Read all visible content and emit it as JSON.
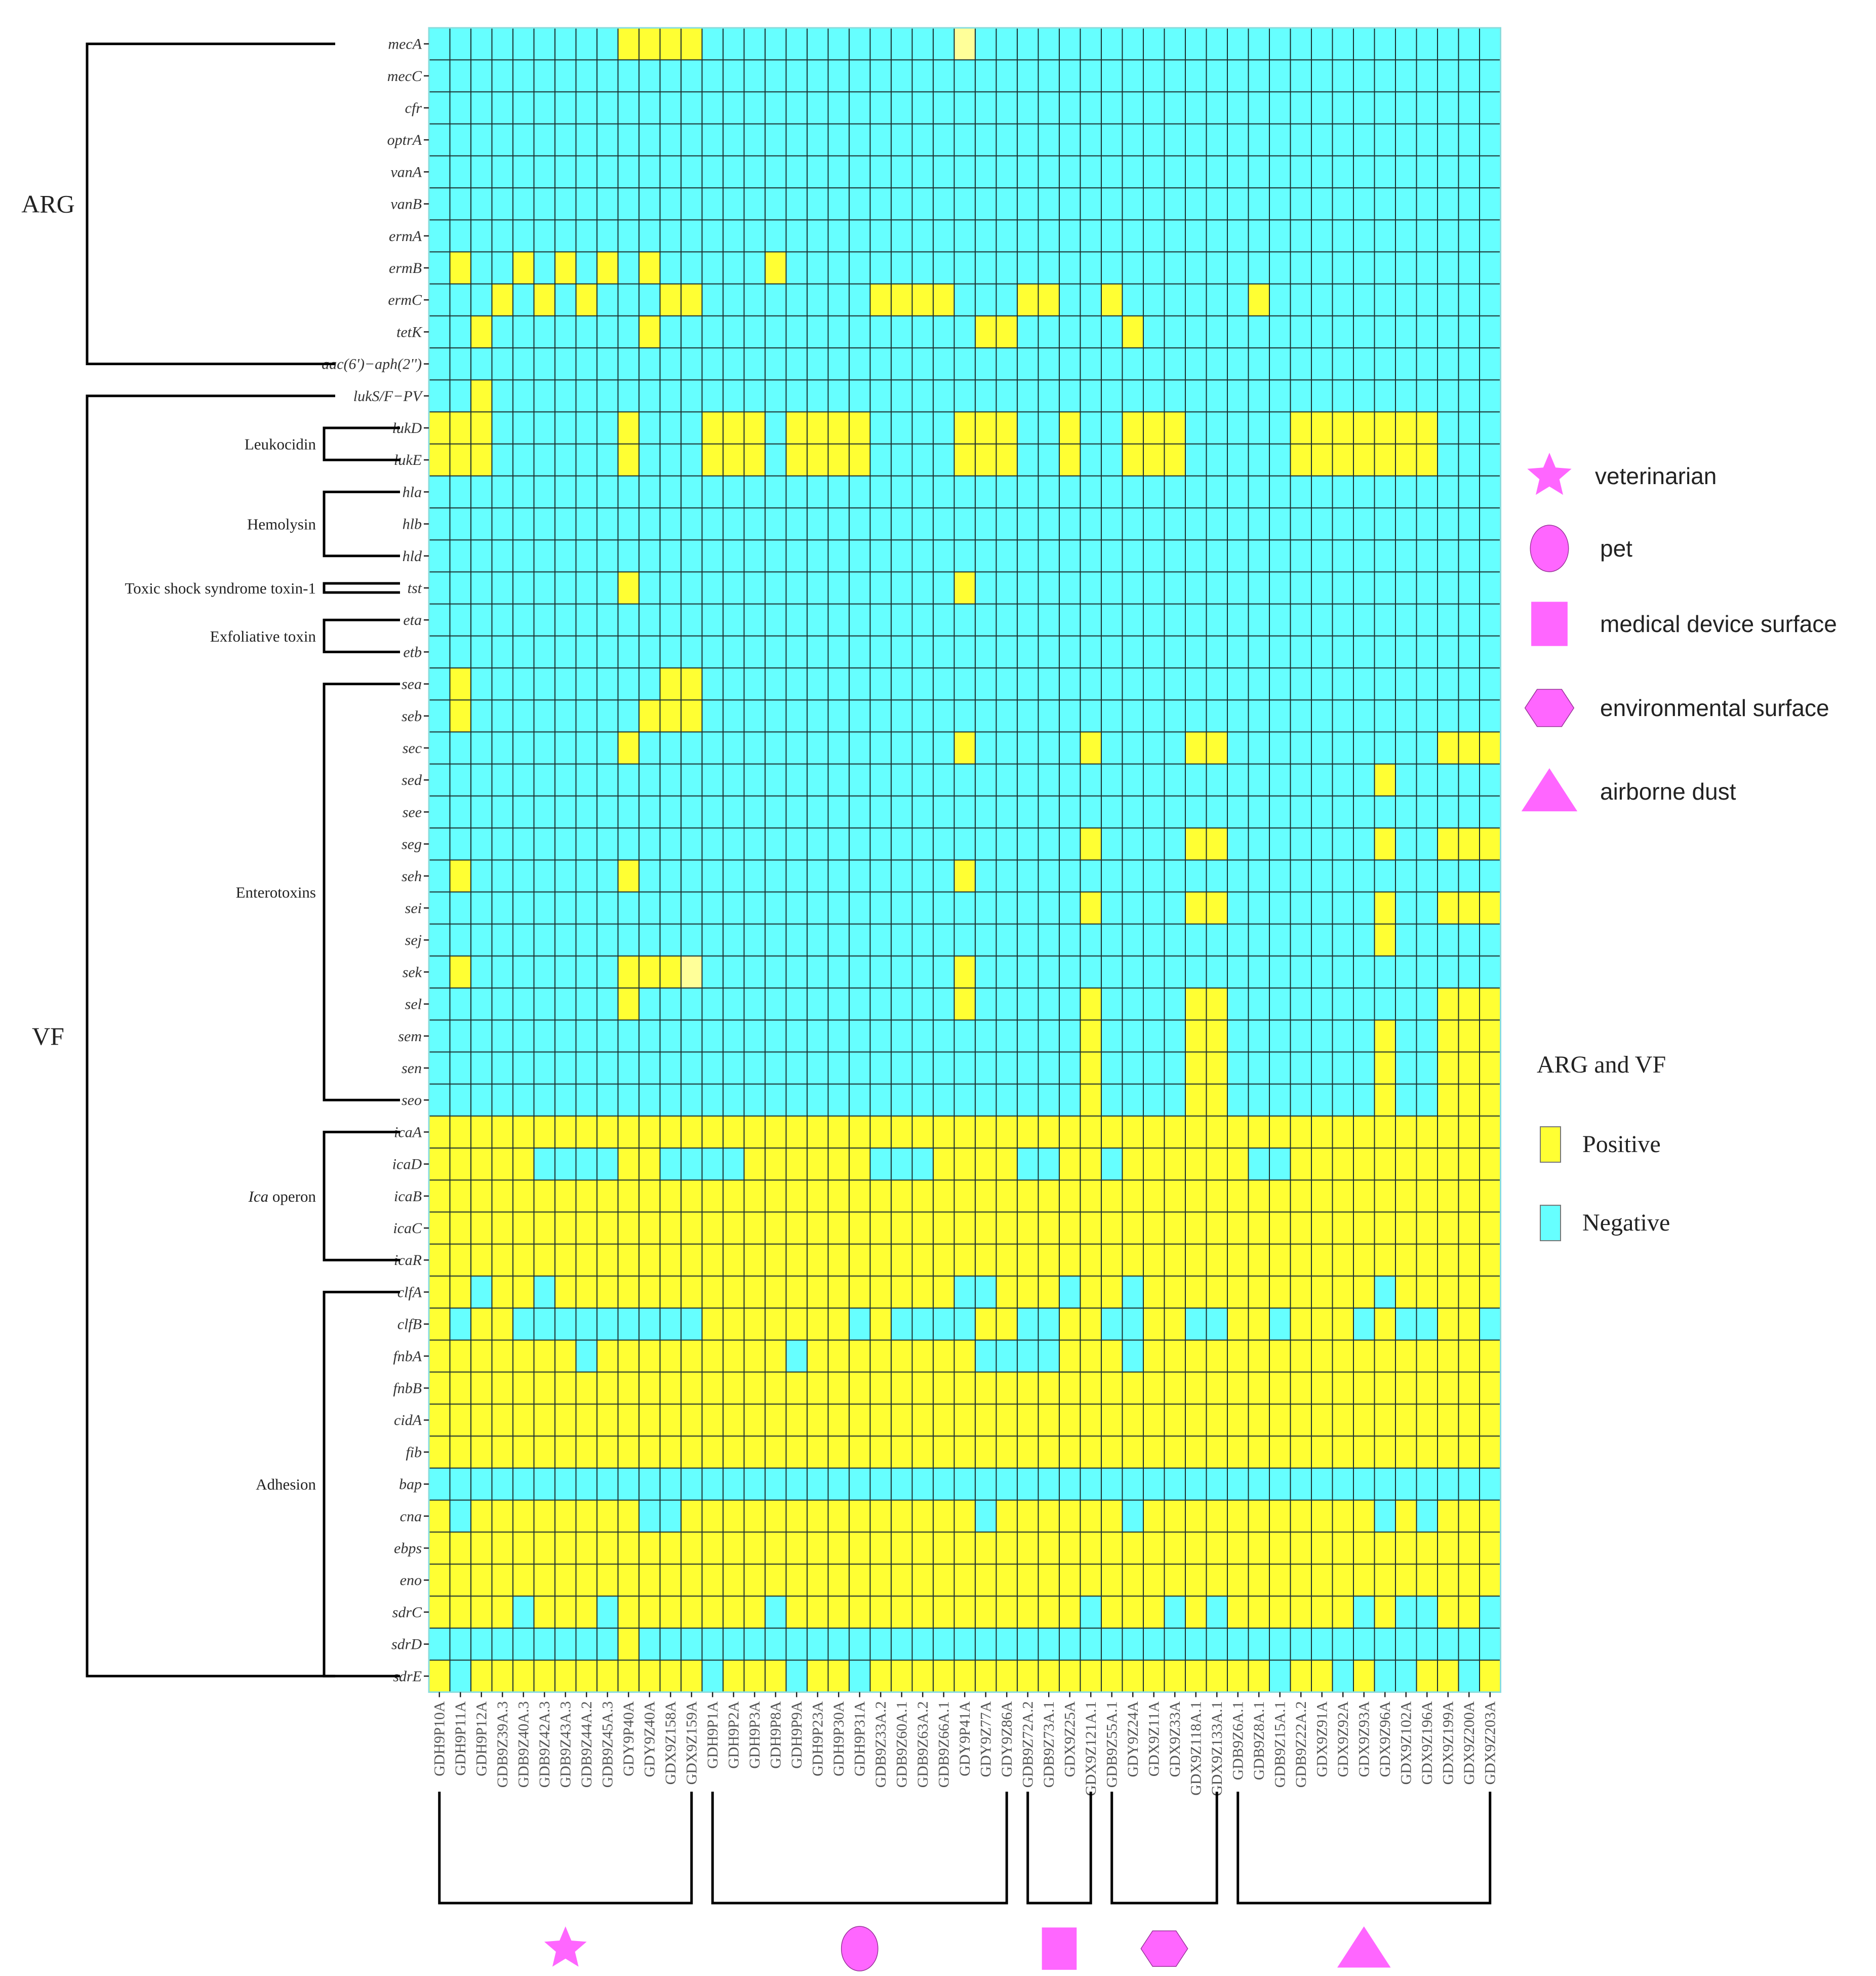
{
  "chart_data": {
    "type": "heatmap",
    "title": "",
    "colors": {
      "positive": "#ffff33",
      "negative": "#66ffff",
      "grid": "#1a2e2e",
      "bracket": "#000000",
      "symbol": "#ff66ff"
    },
    "genes": [
      "mecA",
      "mecC",
      "cfr",
      "optrA",
      "vanA",
      "vanB",
      "ermA",
      "ermB",
      "ermC",
      "tetK",
      "aac(6')−aph(2'')",
      "lukS/F−PV",
      "lukD",
      "lukE",
      "hla",
      "hlb",
      "hld",
      "tst",
      "eta",
      "etb",
      "sea",
      "seb",
      "sec",
      "sed",
      "see",
      "seg",
      "seh",
      "sei",
      "sej",
      "sek",
      "sel",
      "sem",
      "sen",
      "seo",
      "icaA",
      "icaD",
      "icaB",
      "icaC",
      "icaR",
      "clfA",
      "clfB",
      "fnbA",
      "fnbB",
      "cidA",
      "fib",
      "bap",
      "cna",
      "ebps",
      "eno",
      "sdrC",
      "sdrD",
      "sdrE"
    ],
    "isolates": [
      "GDH9P10A",
      "GDH9P11A",
      "GDH9P12A",
      "GDB9Z39A.3",
      "GDB9Z40A.3",
      "GDB9Z42A.3",
      "GDB9Z43A.3",
      "GDB9Z44A.2",
      "GDB9Z45A.3",
      "GDY9P40A",
      "GDY9Z40A",
      "GDX9Z158A",
      "GDX9Z159A",
      "GDH9P1A",
      "GDH9P2A",
      "GDH9P3A",
      "GDH9P8A",
      "GDH9P9A",
      "GDH9P23A",
      "GDH9P30A",
      "GDH9P31A",
      "GDB9Z33A.2",
      "GDB9Z60A.1",
      "GDB9Z63A.2",
      "GDB9Z66A.1",
      "GDY9P41A",
      "GDY9Z77A",
      "GDY9Z86A",
      "GDB9Z72A.2",
      "GDB9Z73A.1",
      "GDX9Z25A",
      "GDX9Z121A.1",
      "GDB9Z55A.1",
      "GDY9Z24A",
      "GDX9Z11A",
      "GDX9Z33A",
      "GDX9Z118A.1",
      "GDX9Z133A.1",
      "GDB9Z6A.1",
      "GDB9Z8A.1",
      "GDB9Z15A.1",
      "GDB9Z22A.2",
      "GDX9Z91A",
      "GDX9Z92A",
      "GDX9Z93A",
      "GDX9Z96A",
      "GDX9Z102A",
      "GDX9Z196A",
      "GDX9Z199A",
      "GDX9Z200A",
      "GDX9Z203A"
    ],
    "positive_cells": {
      "mecA": [
        "GDY9P40A",
        "GDY9Z40A",
        "GDX9Z158A",
        "GDX9Z159A",
        "GDY9P41A"
      ],
      "ermB": [
        "GDH9P11A",
        "GDB9Z40A.3",
        "GDB9Z43A.3",
        "GDB9Z45A.3",
        "GDY9Z40A",
        "GDH9P8A"
      ],
      "ermC": [
        "GDB9Z39A.3",
        "GDB9Z42A.3",
        "GDB9Z44A.2",
        "GDX9Z158A",
        "GDX9Z159A",
        "GDB9Z33A.2",
        "GDB9Z60A.1",
        "GDB9Z63A.2",
        "GDB9Z66A.1",
        "GDB9Z72A.2",
        "GDB9Z73A.1",
        "GDB9Z55A.1",
        "GDB9Z8A.1"
      ],
      "tetK": [
        "GDH9P12A",
        "GDY9Z40A",
        "GDY9Z77A",
        "GDY9Z86A",
        "GDY9Z24A"
      ],
      "lukS/F−PV": [
        "GDH9P12A"
      ],
      "lukD": [
        "GDH9P10A",
        "GDH9P11A",
        "GDH9P12A",
        "GDY9P40A",
        "GDH9P1A",
        "GDH9P2A",
        "GDH9P3A",
        "GDH9P9A",
        "GDH9P23A",
        "GDH9P30A",
        "GDH9P31A",
        "GDY9P41A",
        "GDY9Z77A",
        "GDY9Z86A",
        "GDX9Z25A",
        "GDY9Z24A",
        "GDX9Z11A",
        "GDX9Z33A",
        "GDB9Z22A.2",
        "GDX9Z91A",
        "GDX9Z92A",
        "GDX9Z93A",
        "GDX9Z96A",
        "GDX9Z102A",
        "GDX9Z196A"
      ],
      "lukE": [
        "GDH9P10A",
        "GDH9P11A",
        "GDH9P12A",
        "GDY9P40A",
        "GDH9P1A",
        "GDH9P2A",
        "GDH9P3A",
        "GDH9P9A",
        "GDH9P23A",
        "GDH9P30A",
        "GDH9P31A",
        "GDY9P41A",
        "GDY9Z77A",
        "GDY9Z86A",
        "GDX9Z25A",
        "GDY9Z24A",
        "GDX9Z11A",
        "GDX9Z33A",
        "GDB9Z22A.2",
        "GDX9Z91A",
        "GDX9Z92A",
        "GDX9Z93A",
        "GDX9Z96A",
        "GDX9Z102A",
        "GDX9Z196A"
      ],
      "tst": [
        "GDY9P40A",
        "GDY9P41A"
      ],
      "sea": [
        "GDH9P11A",
        "GDX9Z158A",
        "GDX9Z159A"
      ],
      "seb": [
        "GDH9P11A",
        "GDY9Z40A",
        "GDX9Z158A",
        "GDX9Z159A"
      ],
      "sec": [
        "GDY9P40A",
        "GDY9P41A",
        "GDX9Z121A.1",
        "GDX9Z118A.1",
        "GDX9Z133A.1",
        "GDX9Z199A",
        "GDX9Z200A",
        "GDX9Z203A"
      ],
      "sed": [
        "GDX9Z96A"
      ],
      "seg": [
        "GDX9Z121A.1",
        "GDX9Z118A.1",
        "GDX9Z133A.1",
        "GDX9Z96A",
        "GDX9Z199A",
        "GDX9Z200A",
        "GDX9Z203A"
      ],
      "seh": [
        "GDH9P11A",
        "GDY9P40A",
        "GDY9P41A"
      ],
      "sei": [
        "GDX9Z121A.1",
        "GDX9Z118A.1",
        "GDX9Z133A.1",
        "GDX9Z96A",
        "GDX9Z199A",
        "GDX9Z200A",
        "GDX9Z203A"
      ],
      "sej": [
        "GDX9Z96A"
      ],
      "sek": [
        "GDH9P11A",
        "GDY9P40A",
        "GDY9Z40A",
        "GDX9Z158A",
        "GDX9Z159A",
        "GDY9P41A"
      ],
      "sel": [
        "GDY9P40A",
        "GDY9P41A",
        "GDX9Z121A.1",
        "GDX9Z118A.1",
        "GDX9Z133A.1",
        "GDX9Z199A",
        "GDX9Z200A",
        "GDX9Z203A"
      ],
      "sem": [
        "GDX9Z121A.1",
        "GDX9Z118A.1",
        "GDX9Z133A.1",
        "GDX9Z96A",
        "GDX9Z199A",
        "GDX9Z200A",
        "GDX9Z203A"
      ],
      "sen": [
        "GDX9Z121A.1",
        "GDX9Z118A.1",
        "GDX9Z133A.1",
        "GDX9Z96A",
        "GDX9Z199A",
        "GDX9Z200A",
        "GDX9Z203A"
      ],
      "seo": [
        "GDX9Z121A.1",
        "GDX9Z118A.1",
        "GDX9Z133A.1",
        "GDX9Z96A",
        "GDX9Z199A",
        "GDX9Z200A",
        "GDX9Z203A"
      ]
    },
    "all_positive_except": {
      "icaA": [],
      "icaD": [
        "GDB9Z42A.3",
        "GDB9Z43A.3",
        "GDB9Z44A.2",
        "GDB9Z45A.3",
        "GDX9Z158A",
        "GDX9Z159A",
        "GDH9P1A",
        "GDH9P2A",
        "GDB9Z33A.2",
        "GDB9Z60A.1",
        "GDB9Z63A.2",
        "GDB9Z72A.2",
        "GDB9Z73A.1",
        "GDB9Z55A.1",
        "GDB9Z8A.1",
        "GDB9Z15A.1"
      ],
      "icaB": [],
      "icaC": [],
      "icaR": [],
      "clfA": [
        "GDH9P12A",
        "GDB9Z42A.3",
        "GDY9P41A",
        "GDY9Z77A",
        "GDX9Z25A",
        "GDY9Z24A",
        "GDX9Z96A"
      ],
      "clfB": [
        "GDH9P11A",
        "GDB9Z40A.3",
        "GDB9Z42A.3",
        "GDB9Z43A.3",
        "GDB9Z44A.2",
        "GDB9Z45A.3",
        "GDY9P40A",
        "GDY9Z40A",
        "GDX9Z158A",
        "GDX9Z159A",
        "GDH9P31A",
        "GDB9Z60A.1",
        "GDB9Z63A.2",
        "GDB9Z66A.1",
        "GDY9P41A",
        "GDB9Z72A.2",
        "GDB9Z73A.1",
        "GDB9Z55A.1",
        "GDY9Z24A",
        "GDX9Z118A.1",
        "GDX9Z133A.1",
        "GDB9Z15A.1",
        "GDX9Z93A",
        "GDX9Z102A",
        "GDX9Z196A",
        "GDX9Z203A"
      ],
      "fnbA": [
        "GDB9Z44A.2",
        "GDH9P9A",
        "GDY9Z77A",
        "GDY9Z86A",
        "GDB9Z72A.2",
        "GDB9Z73A.1",
        "GDY9Z24A"
      ],
      "fnbB": [],
      "cidA": [],
      "fib": [],
      "bap": [
        "GDH9P10A",
        "GDH9P11A",
        "GDH9P12A",
        "GDB9Z39A.3",
        "GDB9Z40A.3",
        "GDB9Z42A.3",
        "GDB9Z43A.3",
        "GDB9Z44A.2",
        "GDB9Z45A.3",
        "GDY9P40A",
        "GDY9Z40A",
        "GDX9Z158A",
        "GDX9Z159A",
        "GDH9P1A",
        "GDH9P2A",
        "GDH9P3A",
        "GDH9P8A",
        "GDH9P9A",
        "GDH9P23A",
        "GDH9P30A",
        "GDH9P31A",
        "GDB9Z33A.2",
        "GDB9Z60A.1",
        "GDB9Z63A.2",
        "GDB9Z66A.1",
        "GDY9P41A",
        "GDY9Z77A",
        "GDY9Z86A",
        "GDB9Z72A.2",
        "GDB9Z73A.1",
        "GDX9Z25A",
        "GDX9Z121A.1",
        "GDB9Z55A.1",
        "GDY9Z24A",
        "GDX9Z11A",
        "GDX9Z33A",
        "GDX9Z118A.1",
        "GDX9Z133A.1",
        "GDB9Z6A.1",
        "GDB9Z8A.1",
        "GDB9Z15A.1",
        "GDB9Z22A.2",
        "GDX9Z91A",
        "GDX9Z92A",
        "GDX9Z93A",
        "GDX9Z96A",
        "GDX9Z102A",
        "GDX9Z196A",
        "GDX9Z199A",
        "GDX9Z200A",
        "GDX9Z203A"
      ],
      "cna": [
        "GDH9P11A",
        "GDY9Z40A",
        "GDX9Z158A",
        "GDY9Z77A",
        "GDY9Z24A",
        "GDX9Z96A",
        "GDX9Z196A"
      ],
      "ebps": [],
      "eno": [],
      "sdrC": [
        "GDB9Z40A.3",
        "GDB9Z45A.3",
        "GDH9P8A",
        "GDX9Z121A.1",
        "GDX9Z33A",
        "GDX9Z133A.1",
        "GDX9Z93A",
        "GDX9Z102A",
        "GDX9Z196A",
        "GDX9Z203A"
      ],
      "sdrD": [
        "GDH9P10A",
        "GDH9P11A",
        "GDH9P12A",
        "GDB9Z39A.3",
        "GDB9Z40A.3",
        "GDB9Z42A.3",
        "GDB9Z43A.3",
        "GDB9Z44A.2",
        "GDB9Z45A.3",
        "GDY9Z40A",
        "GDX9Z158A",
        "GDX9Z159A",
        "GDH9P1A",
        "GDH9P2A",
        "GDH9P3A",
        "GDH9P8A",
        "GDH9P9A",
        "GDH9P23A",
        "GDH9P30A",
        "GDH9P31A",
        "GDB9Z33A.2",
        "GDB9Z60A.1",
        "GDB9Z63A.2",
        "GDB9Z66A.1",
        "GDY9P41A",
        "GDY9Z77A",
        "GDY9Z86A",
        "GDB9Z72A.2",
        "GDB9Z73A.1",
        "GDX9Z25A",
        "GDX9Z121A.1",
        "GDB9Z55A.1",
        "GDY9Z24A",
        "GDX9Z11A",
        "GDX9Z33A",
        "GDX9Z118A.1",
        "GDX9Z133A.1",
        "GDB9Z6A.1",
        "GDB9Z8A.1",
        "GDB9Z15A.1",
        "GDB9Z22A.2",
        "GDX9Z91A",
        "GDX9Z92A",
        "GDX9Z93A",
        "GDX9Z96A",
        "GDX9Z102A",
        "GDX9Z196A",
        "GDX9Z199A",
        "GDX9Z200A",
        "GDX9Z203A"
      ],
      "sdrE": [
        "GDH9P11A",
        "GDH9P1A",
        "GDH9P9A",
        "GDH9P31A",
        "GDB9Z15A.1",
        "GDX9Z92A",
        "GDX9Z96A",
        "GDX9Z102A",
        "GDX9Z200A"
      ]
    },
    "pale_cells": [
      {
        "gene": "mecA",
        "isolate": "GDY9P41A"
      },
      {
        "gene": "sek",
        "isolate": "GDX9Z159A"
      }
    ],
    "gene_categories": [
      {
        "label": "ARG",
        "first_gene": "mecA",
        "last_gene": "aac(6')−aph(2'')"
      },
      {
        "label": "VF",
        "first_gene": "lukS/F−PV",
        "last_gene": "sdrE"
      }
    ],
    "vf_subgroups": [
      {
        "label": "Leukocidin",
        "first_gene": "lukD",
        "last_gene": "lukE"
      },
      {
        "label": "Hemolysin",
        "first_gene": "hla",
        "last_gene": "hld"
      },
      {
        "label": "Toxic shock syndrome toxin-1",
        "first_gene": "tst",
        "last_gene": "tst"
      },
      {
        "label": "Exfoliative toxin",
        "first_gene": "eta",
        "last_gene": "etb"
      },
      {
        "label": "Enterotoxins",
        "first_gene": "sea",
        "last_gene": "seo"
      },
      {
        "label_italic": "Ica",
        "label_rest": " operon",
        "first_gene": "icaA",
        "last_gene": "icaR"
      },
      {
        "label": "Adhesion",
        "first_gene": "clfA",
        "last_gene": "sdrE"
      }
    ],
    "sources": [
      {
        "name": "veterinarian",
        "symbol": "star",
        "first_isolate": "GDH9P10A",
        "last_isolate": "GDX9Z159A"
      },
      {
        "name": "pet",
        "symbol": "circle",
        "first_isolate": "GDH9P1A",
        "last_isolate": "GDY9Z86A"
      },
      {
        "name": "medical device surface",
        "symbol": "square",
        "first_isolate": "GDB9Z72A.2",
        "last_isolate": "GDX9Z121A.1"
      },
      {
        "name": "environmental surface",
        "symbol": "hexagon",
        "first_isolate": "GDB9Z55A.1",
        "last_isolate": "GDX9Z133A.1"
      },
      {
        "name": "airborne dust",
        "symbol": "triangle",
        "first_isolate": "GDB9Z6A.1",
        "last_isolate": "GDX9Z203A"
      }
    ],
    "legend": {
      "title": "ARG and VF",
      "items": [
        {
          "label": "Positive",
          "color": "#ffff33"
        },
        {
          "label": "Negative",
          "color": "#66ffff"
        }
      ]
    }
  }
}
